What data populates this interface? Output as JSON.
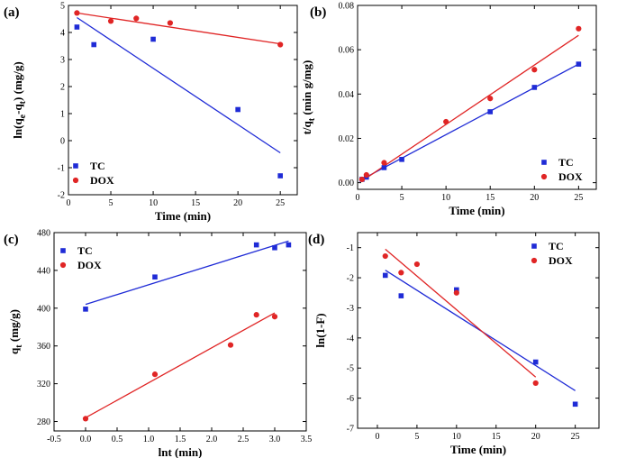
{
  "colors": {
    "tc": "#1f2bd6",
    "dox": "#e02525",
    "axis": "#000000"
  },
  "chart_data": [
    {
      "id": "a",
      "panel_label": "(a)",
      "type": "scatter",
      "xlabel": "Time (min)",
      "ylabel_parts": [
        {
          "t": "ln(q",
          "s": 0
        },
        {
          "t": "e",
          "s": -1
        },
        {
          "t": "-q",
          "s": 0
        },
        {
          "t": "t",
          "s": -1
        },
        {
          "t": ") (mg/g)",
          "s": 0
        }
      ],
      "xlim": [
        0,
        27
      ],
      "ylim": [
        -2,
        5
      ],
      "xticks": [
        0,
        5,
        10,
        15,
        20,
        25
      ],
      "yticks": [
        -2,
        -1,
        0,
        1,
        2,
        3,
        4,
        5
      ],
      "tick_labels_x": [
        "0",
        "5",
        "10",
        "15",
        "20",
        "25"
      ],
      "tick_labels_y": [
        "-2",
        "-1",
        "0",
        "1",
        "2",
        "3",
        "4",
        "5"
      ],
      "legend_pos": "bottom-left",
      "series": [
        {
          "name": "TC",
          "key": "tc",
          "marker": "square",
          "x": [
            1,
            3,
            10,
            20,
            25
          ],
          "y": [
            4.2,
            3.55,
            3.75,
            1.15,
            -1.3
          ],
          "fit": [
            [
              1,
              4.55
            ],
            [
              25,
              -0.45
            ]
          ]
        },
        {
          "name": "DOX",
          "key": "dox",
          "marker": "circle",
          "x": [
            1,
            5,
            8,
            12,
            25
          ],
          "y": [
            4.72,
            4.42,
            4.52,
            4.35,
            3.55
          ],
          "fit": [
            [
              1,
              4.72
            ],
            [
              25,
              3.58
            ]
          ]
        }
      ]
    },
    {
      "id": "b",
      "panel_label": "(b)",
      "type": "scatter",
      "xlabel": "Time (min)",
      "ylabel_parts": [
        {
          "t": "t/q",
          "s": 0
        },
        {
          "t": "t",
          "s": -1
        },
        {
          "t": " (min g/mg)",
          "s": 0
        }
      ],
      "xlim": [
        0,
        27
      ],
      "ylim": [
        -0.003,
        0.08
      ],
      "xticks": [
        0,
        5,
        10,
        15,
        20,
        25
      ],
      "yticks": [
        0,
        0.02,
        0.04,
        0.06,
        0.08
      ],
      "tick_labels_x": [
        "0",
        "5",
        "10",
        "15",
        "20",
        "25"
      ],
      "tick_labels_y": [
        "0.00",
        "0.02",
        "0.04",
        "0.06",
        "0.08"
      ],
      "legend_pos": "bottom-right",
      "series": [
        {
          "name": "TC",
          "key": "tc",
          "marker": "square",
          "x": [
            0.5,
            1,
            3,
            5,
            15,
            20,
            25
          ],
          "y": [
            0.0015,
            0.0025,
            0.0068,
            0.0105,
            0.032,
            0.043,
            0.0535
          ],
          "fit": [
            [
              0.5,
              0.0015
            ],
            [
              25,
              0.0535
            ]
          ]
        },
        {
          "name": "DOX",
          "key": "dox",
          "marker": "circle",
          "x": [
            0.5,
            1,
            3,
            10,
            15,
            20,
            25
          ],
          "y": [
            0.0015,
            0.0035,
            0.009,
            0.0275,
            0.038,
            0.051,
            0.0695
          ],
          "fit": [
            [
              0.5,
              0.0008
            ],
            [
              25,
              0.0665
            ]
          ]
        }
      ]
    },
    {
      "id": "c",
      "panel_label": "(c)",
      "type": "scatter",
      "xlabel": "lnt (min)",
      "ylabel_parts": [
        {
          "t": "q",
          "s": 0
        },
        {
          "t": "t",
          "s": -1
        },
        {
          "t": " (mg/g)",
          "s": 0
        }
      ],
      "xlim": [
        -0.5,
        3.5
      ],
      "ylim": [
        270,
        480
      ],
      "xticks": [
        -0.5,
        0,
        0.5,
        1,
        1.5,
        2,
        2.5,
        3,
        3.5
      ],
      "yticks": [
        280,
        320,
        360,
        400,
        440,
        480
      ],
      "tick_labels_x": [
        "-0.5",
        "0.0",
        "0.5",
        "1.0",
        "1.5",
        "2.0",
        "2.5",
        "3.0",
        "3.5"
      ],
      "tick_labels_y": [
        "280",
        "320",
        "360",
        "400",
        "440",
        "480"
      ],
      "legend_pos": "top-left",
      "series": [
        {
          "name": "TC",
          "key": "tc",
          "marker": "square",
          "x": [
            0,
            1.1,
            2.71,
            3.0,
            3.22
          ],
          "y": [
            399,
            433,
            467,
            464,
            467
          ],
          "fit": [
            [
              0,
              404
            ],
            [
              3.22,
              471
            ]
          ]
        },
        {
          "name": "DOX",
          "key": "dox",
          "marker": "circle",
          "x": [
            0,
            1.1,
            2.3,
            2.71,
            3.0
          ],
          "y": [
            283,
            330,
            361,
            393,
            391
          ],
          "fit": [
            [
              0,
              284
            ],
            [
              3.0,
              395
            ]
          ]
        }
      ]
    },
    {
      "id": "d",
      "panel_label": "(d)",
      "type": "scatter",
      "xlabel": "Time (min)",
      "ylabel_parts": [
        {
          "t": "ln(1-F)",
          "s": 0
        }
      ],
      "xlim": [
        -2.5,
        28
      ],
      "ylim": [
        -7,
        -0.5
      ],
      "xticks": [
        0,
        5,
        10,
        15,
        20,
        25
      ],
      "yticks": [
        -7,
        -6,
        -5,
        -4,
        -3,
        -2,
        -1
      ],
      "tick_labels_x": [
        "0",
        "5",
        "10",
        "15",
        "20",
        "25"
      ],
      "tick_labels_y": [
        "-7",
        "-6",
        "-5",
        "-4",
        "-3",
        "-2",
        "-1"
      ],
      "legend_pos": "top-right",
      "series": [
        {
          "name": "TC",
          "key": "tc",
          "marker": "square",
          "x": [
            1,
            3,
            10,
            20,
            25
          ],
          "y": [
            -1.92,
            -2.6,
            -2.4,
            -4.8,
            -6.2
          ],
          "fit": [
            [
              1,
              -1.75
            ],
            [
              25,
              -5.75
            ]
          ]
        },
        {
          "name": "DOX",
          "key": "dox",
          "marker": "circle",
          "x": [
            1,
            3,
            5,
            10,
            20
          ],
          "y": [
            -1.28,
            -1.83,
            -1.55,
            -2.5,
            -5.5
          ],
          "fit": [
            [
              1,
              -1.05
            ],
            [
              20,
              -5.3
            ]
          ]
        }
      ]
    }
  ]
}
